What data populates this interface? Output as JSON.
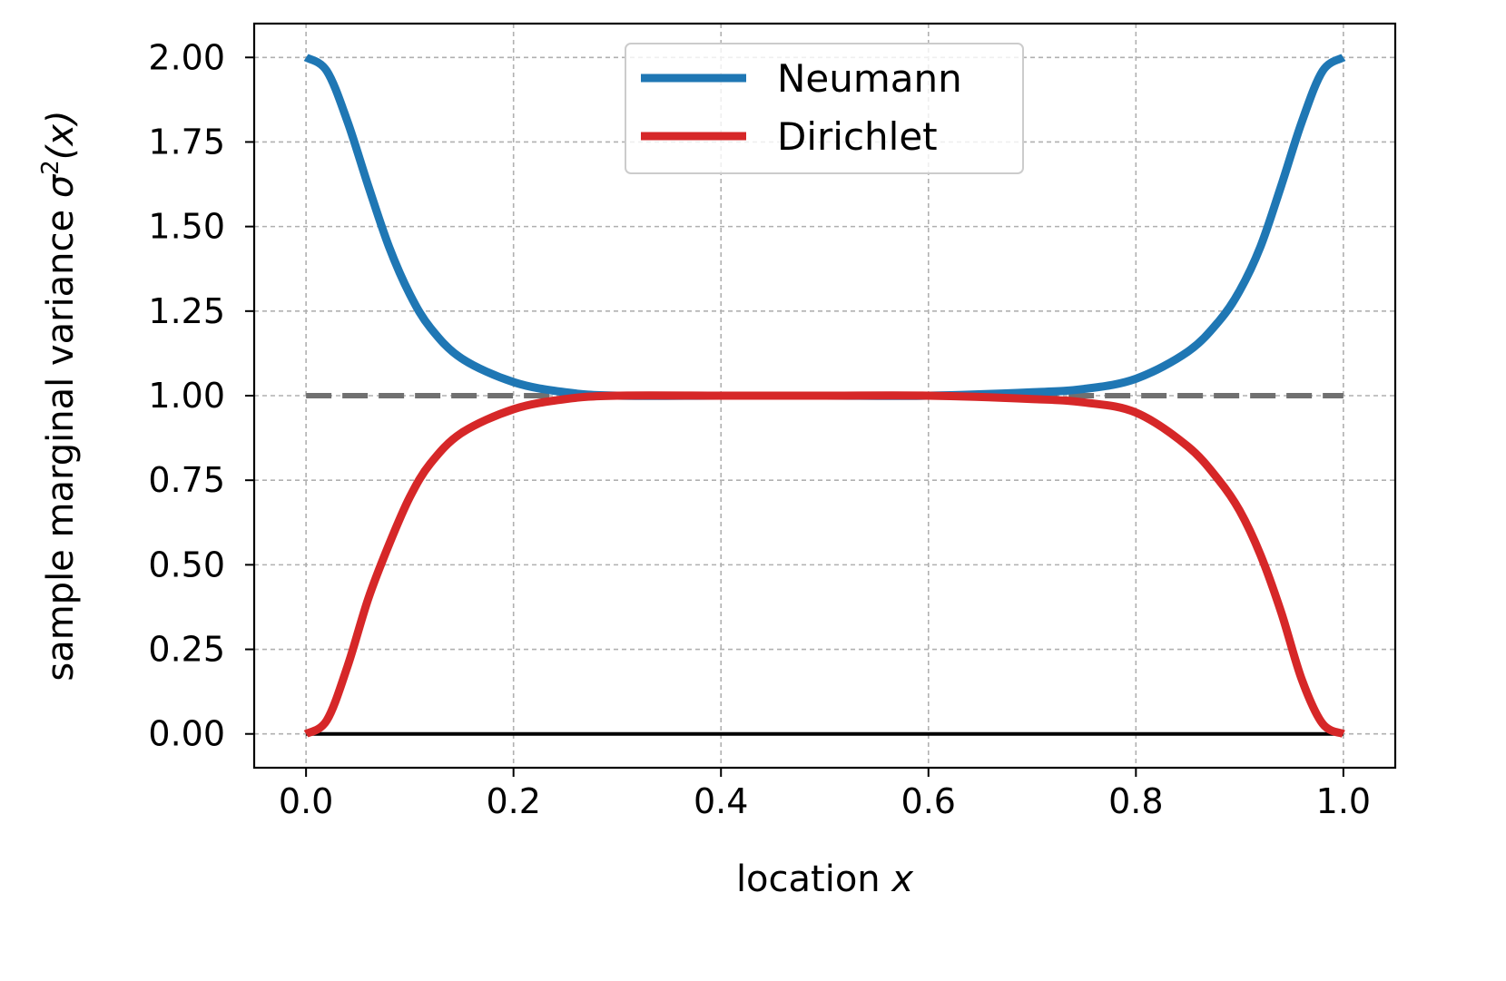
{
  "chart_data": {
    "type": "line",
    "xlabel": "location",
    "xlabel_var": "x",
    "ylabel": "sample marginal variance",
    "ylabel_sym": "σ",
    "ylabel_sup": "2",
    "ylabel_arg": "(x)",
    "xlim": [
      -0.05,
      1.05
    ],
    "ylim": [
      -0.1,
      2.1
    ],
    "xticks": [
      0.0,
      0.2,
      0.4,
      0.6,
      0.8,
      1.0
    ],
    "xtick_labels": [
      "0.0",
      "0.2",
      "0.4",
      "0.6",
      "0.8",
      "1.0"
    ],
    "yticks": [
      0.0,
      0.25,
      0.5,
      0.75,
      1.0,
      1.25,
      1.5,
      1.75,
      2.0
    ],
    "ytick_labels": [
      "0.00",
      "0.25",
      "0.50",
      "0.75",
      "1.00",
      "1.25",
      "1.50",
      "1.75",
      "2.00"
    ],
    "grid": true,
    "legend_position": "top-center",
    "x": [
      0.0,
      0.02,
      0.04,
      0.06,
      0.08,
      0.1,
      0.12,
      0.15,
      0.2,
      0.25,
      0.3,
      0.4,
      0.5,
      0.6,
      0.7,
      0.75,
      0.8,
      0.85,
      0.88,
      0.9,
      0.92,
      0.94,
      0.96,
      0.98,
      1.0
    ],
    "series": [
      {
        "name": "Neumann",
        "color": "#1f77b4",
        "values": [
          2.0,
          1.96,
          1.81,
          1.62,
          1.44,
          1.3,
          1.2,
          1.11,
          1.04,
          1.01,
          1.0,
          1.0,
          1.0,
          1.0,
          1.01,
          1.02,
          1.05,
          1.13,
          1.22,
          1.31,
          1.44,
          1.62,
          1.81,
          1.96,
          2.0
        ]
      },
      {
        "name": "Dirichlet",
        "color": "#d62728",
        "values": [
          0.0,
          0.04,
          0.2,
          0.4,
          0.56,
          0.7,
          0.8,
          0.89,
          0.96,
          0.99,
          1.0,
          1.0,
          1.0,
          1.0,
          0.99,
          0.98,
          0.95,
          0.85,
          0.75,
          0.66,
          0.53,
          0.36,
          0.16,
          0.03,
          0.0
        ]
      }
    ],
    "reference_lines": [
      {
        "y": 1.0,
        "color": "#707070",
        "style": "dashed"
      },
      {
        "y": 0.0,
        "color": "#000000",
        "style": "solid"
      }
    ]
  }
}
